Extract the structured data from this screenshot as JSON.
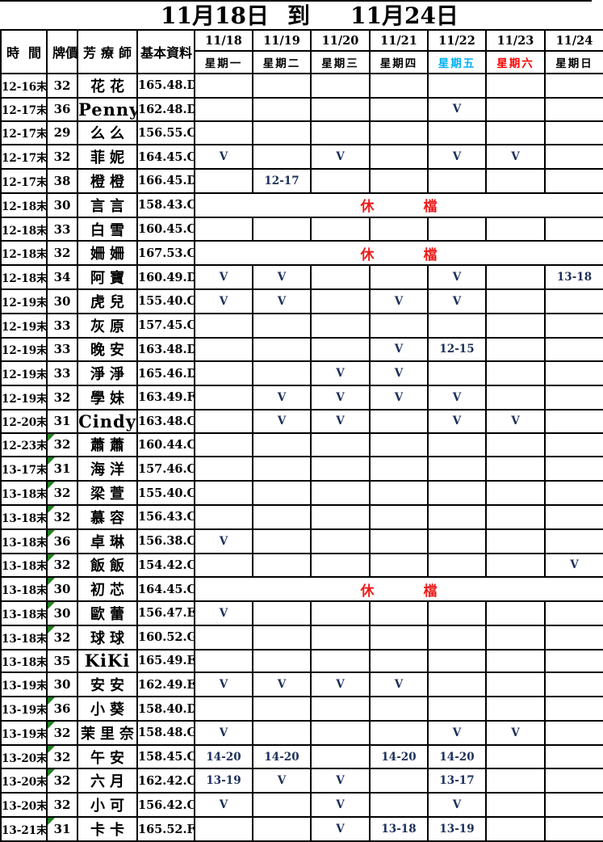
{
  "title": {
    "start": "11月18日",
    "connector": "到",
    "end": "11月24日"
  },
  "header": {
    "time": "時間",
    "price": "牌價",
    "therapist": "芳療師",
    "profile": "基本資料",
    "days": [
      {
        "date": "11/18",
        "weekday": "星期一",
        "color": "#000000"
      },
      {
        "date": "11/19",
        "weekday": "星期二",
        "color": "#000000"
      },
      {
        "date": "11/20",
        "weekday": "星期三",
        "color": "#000000"
      },
      {
        "date": "11/21",
        "weekday": "星期四",
        "color": "#000000"
      },
      {
        "date": "11/22",
        "weekday": "星期五",
        "color": "#00b0f0"
      },
      {
        "date": "11/23",
        "weekday": "星期六",
        "color": "#ff0000"
      },
      {
        "date": "11/24",
        "weekday": "星期日",
        "color": "#000000"
      }
    ]
  },
  "rest_marker": {
    "left": "休",
    "right": "檔"
  },
  "check_mark": "V",
  "colors": {
    "friday_blue": "#00b0f0",
    "saturday_red": "#ff0000",
    "rest_red": "#ee1c1c",
    "mark_navy": "#1c2f5a",
    "comment_marker_green": "#238023"
  },
  "rows": [
    {
      "time": "12-16末",
      "price": "32",
      "name": "花花",
      "profile": "165.48.D",
      "cells": [
        "",
        "",
        "",
        "",
        "",
        "",
        ""
      ]
    },
    {
      "time": "12-17末",
      "price": "36",
      "name": "Penny",
      "profile": "162.48.D",
      "cells": [
        "",
        "",
        "",
        "",
        "V",
        "",
        ""
      ]
    },
    {
      "time": "12-17末",
      "price": "29",
      "name": "么么",
      "profile": "156.55.C",
      "cells": [
        "",
        "",
        "",
        "",
        "",
        "",
        ""
      ]
    },
    {
      "time": "12-17末",
      "price": "32",
      "name": "菲妮",
      "profile": "164.45.C",
      "cells": [
        "V",
        "",
        "V",
        "",
        "V",
        "V",
        ""
      ]
    },
    {
      "time": "12-17末",
      "price": "38",
      "name": "橙橙",
      "profile": "166.45.D",
      "cells": [
        "",
        "12-17",
        "",
        "",
        "",
        "",
        ""
      ]
    },
    {
      "time": "12-18末",
      "price": "30",
      "name": "言言",
      "profile": "158.43.C",
      "rest": true
    },
    {
      "time": "12-18末",
      "price": "33",
      "name": "白雪",
      "profile": "160.45.C",
      "cells": [
        "",
        "",
        "",
        "",
        "",
        "",
        ""
      ]
    },
    {
      "time": "12-18末",
      "price": "32",
      "name": "姍姍",
      "profile": "167.53.C",
      "rest": true
    },
    {
      "time": "12-18末",
      "price": "34",
      "name": "阿寶",
      "profile": "160.49.D",
      "cells": [
        "V",
        "V",
        "",
        "",
        "V",
        "",
        "13-18"
      ]
    },
    {
      "time": "12-19末",
      "price": "30",
      "name": "虎兒",
      "profile": "155.40.C",
      "cells": [
        "V",
        "V",
        "",
        "V",
        "V",
        "",
        ""
      ]
    },
    {
      "time": "12-19末",
      "price": "33",
      "name": "灰原",
      "profile": "157.45.C",
      "cells": [
        "",
        "",
        "",
        "",
        "",
        "",
        ""
      ]
    },
    {
      "time": "12-19末",
      "price": "33",
      "name": "晚安",
      "profile": "163.48.D",
      "cells": [
        "",
        "",
        "",
        "V",
        "12-15",
        "",
        ""
      ]
    },
    {
      "time": "12-19末",
      "price": "33",
      "name": "淨淨",
      "profile": "165.46.D",
      "cells": [
        "",
        "",
        "V",
        "V",
        "",
        "",
        ""
      ]
    },
    {
      "time": "12-19末",
      "price": "32",
      "name": "學妹",
      "profile": "163.49.F",
      "cells": [
        "",
        "V",
        "V",
        "V",
        "V",
        "",
        ""
      ]
    },
    {
      "time": "12-20末",
      "price": "31",
      "name": "Cindy",
      "profile": "163.48.C",
      "cells": [
        "",
        "V",
        "V",
        "",
        "V",
        "V",
        ""
      ]
    },
    {
      "time": "12-23末",
      "price": "32",
      "name": "蕭蕭",
      "profile": "160.44.C",
      "marker": true,
      "cells": [
        "",
        "",
        "",
        "",
        "",
        "",
        ""
      ]
    },
    {
      "time": "13-17末",
      "price": "31",
      "name": "海洋",
      "profile": "157.46.C",
      "marker": true,
      "cells": [
        "",
        "",
        "",
        "",
        "",
        "",
        ""
      ]
    },
    {
      "time": "13-18末",
      "price": "32",
      "name": "梁萱",
      "profile": "155.40.C",
      "marker": true,
      "cells": [
        "",
        "",
        "",
        "",
        "",
        "",
        ""
      ]
    },
    {
      "time": "13-18末",
      "price": "32",
      "name": "慕容",
      "profile": "156.43.C",
      "marker": true,
      "cells": [
        "",
        "",
        "",
        "",
        "",
        "",
        ""
      ]
    },
    {
      "time": "13-18末",
      "price": "36",
      "name": "卓琳",
      "profile": "156.38.C",
      "marker": true,
      "cells": [
        "V",
        "",
        "",
        "",
        "",
        "",
        ""
      ]
    },
    {
      "time": "13-18末",
      "price": "32",
      "name": "飯飯",
      "profile": "154.42.C",
      "marker": true,
      "cells": [
        "",
        "",
        "",
        "",
        "",
        "",
        "V"
      ]
    },
    {
      "time": "13-18末",
      "price": "30",
      "name": "初芯",
      "profile": "164.45.C",
      "marker": true,
      "rest": true
    },
    {
      "time": "13-18末",
      "price": "30",
      "name": "歐蕾",
      "profile": "156.47.E",
      "marker": true,
      "cells": [
        "V",
        "",
        "",
        "",
        "",
        "",
        ""
      ]
    },
    {
      "time": "13-18末",
      "price": "32",
      "name": "球球",
      "profile": "160.52.G",
      "marker": true,
      "cells": [
        "",
        "",
        "",
        "",
        "",
        "",
        ""
      ]
    },
    {
      "time": "13-18末",
      "price": "35",
      "name": "KiKi",
      "profile": "165.49.E",
      "cells": [
        "",
        "",
        "",
        "",
        "",
        "",
        ""
      ]
    },
    {
      "time": "13-19末",
      "price": "30",
      "name": "安安",
      "profile": "162.49.E",
      "cells": [
        "V",
        "V",
        "V",
        "V",
        "",
        "",
        ""
      ]
    },
    {
      "time": "13-19末",
      "price": "36",
      "name": "小葵",
      "profile": "158.40.D",
      "marker": true,
      "cells": [
        "",
        "",
        "",
        "",
        "",
        "",
        ""
      ]
    },
    {
      "time": "13-19末",
      "price": "32",
      "name": "茉里奈",
      "profile": "158.48.G",
      "marker": true,
      "cells": [
        "V",
        "",
        "",
        "",
        "V",
        "V",
        ""
      ]
    },
    {
      "time": "13-20末",
      "price": "32",
      "name": "午安",
      "profile": "158.45.C",
      "marker": true,
      "cells": [
        "14-20",
        "14-20",
        "",
        "14-20",
        "14-20",
        "",
        ""
      ]
    },
    {
      "time": "13-20末",
      "price": "32",
      "name": "六月",
      "profile": "162.42.C",
      "marker": true,
      "cells": [
        "13-19",
        "V",
        "V",
        "",
        "13-17",
        "",
        ""
      ]
    },
    {
      "time": "13-20末",
      "price": "32",
      "name": "小可",
      "profile": "156.42.C",
      "cells": [
        "V",
        "",
        "V",
        "",
        "V",
        "",
        ""
      ]
    },
    {
      "time": "13-21末",
      "price": "31",
      "name": "卡卡",
      "profile": "165.52.F",
      "marker": true,
      "cells": [
        "",
        "",
        "V",
        "13-18",
        "13-19",
        "",
        ""
      ]
    }
  ]
}
